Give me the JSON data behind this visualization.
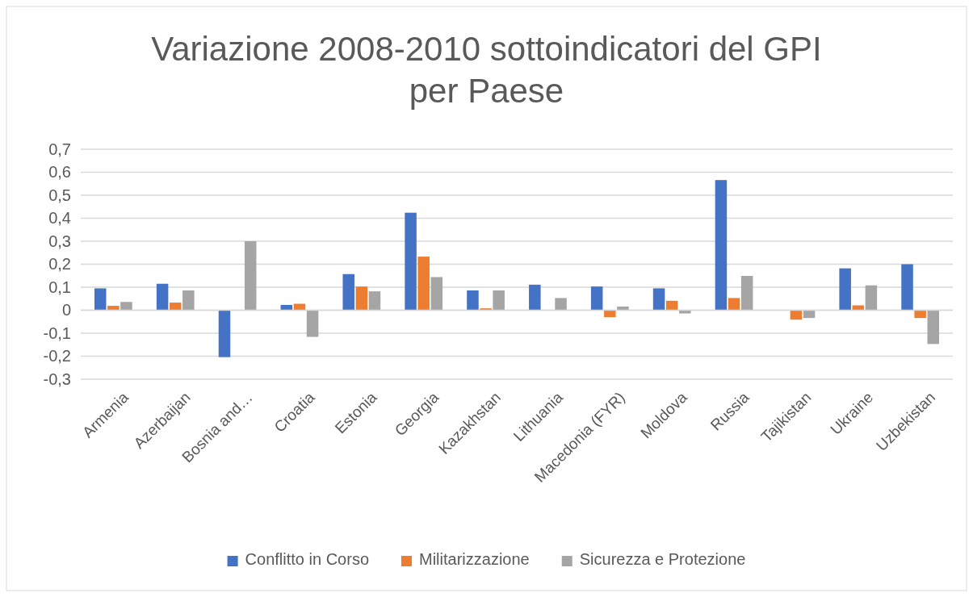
{
  "chart_data": {
    "type": "bar",
    "title": "Variazione 2008-2010 sottoindicatori del GPI per Paese",
    "categories": [
      "Armenia",
      "Azerbaijan",
      "Bosnia and…",
      "Croatia",
      "Estonia",
      "Georgia",
      "Kazakhstan",
      "Lithuania",
      "Macedonia (FYR)",
      "Moldova",
      "Russia",
      "Tajikistan",
      "Ukraine",
      "Uzbekistan"
    ],
    "series": [
      {
        "name": "Conflitto in Corso",
        "color": "#4472c4",
        "values": [
          0.095,
          0.115,
          -0.204,
          0.023,
          0.157,
          0.424,
          0.086,
          0.111,
          0.103,
          0.095,
          0.566,
          0,
          0.182,
          0.2
        ]
      },
      {
        "name": "Militarizzazione",
        "color": "#ed7d31",
        "values": [
          0.019,
          0.033,
          0,
          0.028,
          0.103,
          0.233,
          0.008,
          0,
          -0.03,
          0.041,
          0.053,
          -0.041,
          0.021,
          -0.034
        ]
      },
      {
        "name": "Sicurezza e Protezione",
        "color": "#a5a5a5",
        "values": [
          0.036,
          0.086,
          0.3,
          -0.116,
          0.082,
          0.144,
          0.086,
          0.053,
          0.016,
          -0.014,
          0.149,
          -0.034,
          0.108,
          -0.147
        ]
      }
    ],
    "ylim": [
      -0.3,
      0.7
    ],
    "yticks": [
      {
        "value": -0.3,
        "label": "-0,3"
      },
      {
        "value": -0.2,
        "label": "-0,2"
      },
      {
        "value": -0.1,
        "label": "-0,1"
      },
      0,
      {
        "value": 0.1,
        "label": "0,1"
      },
      {
        "value": 0.2,
        "label": "0,2"
      },
      {
        "value": 0.3,
        "label": "0,3"
      },
      {
        "value": 0.4,
        "label": "0,4"
      },
      {
        "value": 0.5,
        "label": "0,5"
      },
      {
        "value": 0.6,
        "label": "0,6"
      },
      {
        "value": 0.7,
        "label": "0,7"
      }
    ],
    "grid": "y",
    "legend": "bottom"
  }
}
